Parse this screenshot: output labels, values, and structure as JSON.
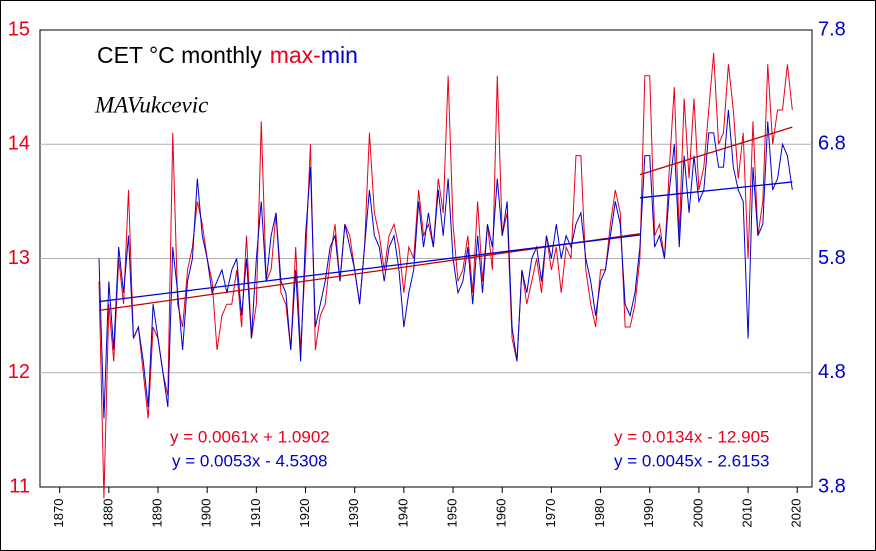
{
  "chart_data": {
    "type": "line",
    "title": "CET °C monthly",
    "watermark": "MAVukcevic",
    "title_separator": "-",
    "x": [
      1878,
      1879,
      1880,
      1881,
      1882,
      1883,
      1884,
      1885,
      1886,
      1887,
      1888,
      1889,
      1890,
      1891,
      1892,
      1893,
      1894,
      1895,
      1896,
      1897,
      1898,
      1899,
      1900,
      1901,
      1902,
      1903,
      1904,
      1905,
      1906,
      1907,
      1908,
      1909,
      1910,
      1911,
      1912,
      1913,
      1914,
      1915,
      1916,
      1917,
      1918,
      1919,
      1920,
      1921,
      1922,
      1923,
      1924,
      1925,
      1926,
      1927,
      1928,
      1929,
      1930,
      1931,
      1932,
      1933,
      1934,
      1935,
      1936,
      1937,
      1938,
      1939,
      1940,
      1941,
      1942,
      1943,
      1944,
      1945,
      1946,
      1947,
      1948,
      1949,
      1950,
      1951,
      1952,
      1953,
      1954,
      1955,
      1956,
      1957,
      1958,
      1959,
      1960,
      1961,
      1962,
      1963,
      1964,
      1965,
      1966,
      1967,
      1968,
      1969,
      1970,
      1971,
      1972,
      1973,
      1974,
      1975,
      1976,
      1977,
      1978,
      1979,
      1980,
      1981,
      1982,
      1983,
      1984,
      1985,
      1986,
      1987,
      1988,
      1989,
      1990,
      1991,
      1992,
      1993,
      1994,
      1995,
      1996,
      1997,
      1998,
      1999,
      2000,
      2001,
      2002,
      2003,
      2004,
      2005,
      2006,
      2007,
      2008,
      2009,
      2010,
      2011,
      2012,
      2013,
      2014,
      2015,
      2016,
      2017,
      2018,
      2019
    ],
    "series": [
      {
        "name": "max",
        "color": "#e8001c",
        "axis": "y",
        "values": [
          12.8,
          10.9,
          12.6,
          12.1,
          13.0,
          12.6,
          13.6,
          12.3,
          12.4,
          12.0,
          11.6,
          12.4,
          12.3,
          12.0,
          11.8,
          14.1,
          12.6,
          12.4,
          12.9,
          13.1,
          13.5,
          13.3,
          13.0,
          12.8,
          12.2,
          12.5,
          12.6,
          12.6,
          12.9,
          12.4,
          13.2,
          12.3,
          12.6,
          14.2,
          12.8,
          12.9,
          13.4,
          12.7,
          12.6,
          12.2,
          13.1,
          12.2,
          13.0,
          14.0,
          12.2,
          12.5,
          12.6,
          13.0,
          13.3,
          12.8,
          13.3,
          13.2,
          12.9,
          12.6,
          13.1,
          14.1,
          13.4,
          13.2,
          12.9,
          13.2,
          13.3,
          13.1,
          12.7,
          13.1,
          13.0,
          13.6,
          13.2,
          13.3,
          13.1,
          13.7,
          13.4,
          14.6,
          13.3,
          12.8,
          12.9,
          13.2,
          12.7,
          13.5,
          12.8,
          13.3,
          12.9,
          14.6,
          13.2,
          13.4,
          12.3,
          12.1,
          12.9,
          12.6,
          12.8,
          13.0,
          12.7,
          13.2,
          12.9,
          13.1,
          12.7,
          13.1,
          13.0,
          13.9,
          13.9,
          12.9,
          12.6,
          12.4,
          12.9,
          12.9,
          13.3,
          13.6,
          13.4,
          12.4,
          12.4,
          12.6,
          13.0,
          14.6,
          14.6,
          13.2,
          13.3,
          13.0,
          13.8,
          14.5,
          13.2,
          14.4,
          13.7,
          14.4,
          13.6,
          13.8,
          14.3,
          14.8,
          14.0,
          14.1,
          14.7,
          14.3,
          13.7,
          14.1,
          13.0,
          14.2,
          13.2,
          13.5,
          14.7,
          14.0,
          14.3,
          14.3,
          14.7,
          14.3
        ]
      },
      {
        "name": "min",
        "color": "#0000cc",
        "axis": "y2",
        "values": [
          5.8,
          4.4,
          5.6,
          5.0,
          5.9,
          5.5,
          6.0,
          5.1,
          5.2,
          4.9,
          4.5,
          5.4,
          5.1,
          4.8,
          4.5,
          5.9,
          5.5,
          5.0,
          5.6,
          5.8,
          6.5,
          6.0,
          5.8,
          5.5,
          5.6,
          5.7,
          5.5,
          5.7,
          5.8,
          5.3,
          5.8,
          5.1,
          5.8,
          6.3,
          5.6,
          6.0,
          6.2,
          5.6,
          5.5,
          5.0,
          5.7,
          4.9,
          6.0,
          6.6,
          5.2,
          5.4,
          5.6,
          5.9,
          6.0,
          5.6,
          6.1,
          5.9,
          5.7,
          5.4,
          5.9,
          6.4,
          6.0,
          5.9,
          5.6,
          5.9,
          6.0,
          5.7,
          5.2,
          5.5,
          5.7,
          6.3,
          5.9,
          6.2,
          5.9,
          6.4,
          6.0,
          6.5,
          5.8,
          5.5,
          5.6,
          5.9,
          5.4,
          6.0,
          5.5,
          6.1,
          5.9,
          6.5,
          6.0,
          6.3,
          5.2,
          4.9,
          5.7,
          5.5,
          5.8,
          5.9,
          5.6,
          6.0,
          5.8,
          6.1,
          5.8,
          6.0,
          5.9,
          6.1,
          6.2,
          5.8,
          5.6,
          5.3,
          5.6,
          5.7,
          6.0,
          6.3,
          6.1,
          5.4,
          5.3,
          5.5,
          5.9,
          6.7,
          6.7,
          5.9,
          6.0,
          5.8,
          6.4,
          6.8,
          5.9,
          6.7,
          6.2,
          6.7,
          6.3,
          6.4,
          6.9,
          6.9,
          6.6,
          6.6,
          7.1,
          6.6,
          6.4,
          6.3,
          5.1,
          6.6,
          6.0,
          6.1,
          7.0,
          6.4,
          6.5,
          6.8,
          6.7,
          6.4
        ]
      }
    ],
    "trendlines": [
      {
        "axis": "y",
        "color": "#c00000",
        "x": [
          1878,
          1988
        ],
        "values": [
          12.546,
          13.217
        ]
      },
      {
        "axis": "y2",
        "color": "#0000cc",
        "x": [
          1878,
          1988
        ],
        "values": [
          5.423,
          6.006
        ]
      },
      {
        "axis": "y",
        "color": "#c00000",
        "x": [
          1988,
          2019
        ],
        "values": [
          13.734,
          14.15
        ]
      },
      {
        "axis": "y2",
        "color": "#0000cc",
        "x": [
          1988,
          2019
        ],
        "values": [
          6.331,
          6.47
        ]
      }
    ],
    "annotations": [
      {
        "text": "y = 0.0061x + 1.0902",
        "color": "#e8001c"
      },
      {
        "text": "y = 0.0053x - 4.5308",
        "color": "#0000cc"
      },
      {
        "text": "y = 0.0134x - 12.905",
        "color": "#e8001c"
      },
      {
        "text": "y = 0.0045x - 2.6153",
        "color": "#0000cc"
      }
    ],
    "xlim": [
      1866,
      2023
    ],
    "xticks": [
      1870,
      1880,
      1890,
      1900,
      1910,
      1920,
      1930,
      1940,
      1950,
      1960,
      1970,
      1980,
      1990,
      2000,
      2010,
      2020
    ],
    "ylim": [
      11,
      15
    ],
    "yticks": [
      11,
      12,
      13,
      14,
      15
    ],
    "y2lim": [
      3.8,
      7.8
    ],
    "y2ticks": [
      3.8,
      4.8,
      5.8,
      6.8,
      7.8
    ],
    "grid": true
  }
}
